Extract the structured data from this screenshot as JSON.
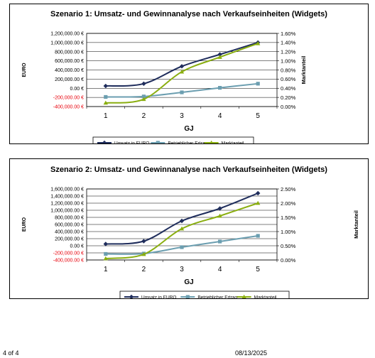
{
  "footer": {
    "page": "4 of 4",
    "date": "08/13/2025"
  },
  "chart_data": [
    {
      "type": "line",
      "title": "Szenario 1: Umsatz- und Gewinnanalyse nach Verkaufseinheiten (Widgets)",
      "xlabel": "GJ",
      "ylabel": "EURO",
      "y2label": "Marktanteil",
      "categories": [
        "1",
        "2",
        "3",
        "4",
        "5"
      ],
      "ylim": [
        -400000,
        1200000
      ],
      "yticks": [
        "1,200,000.00 €",
        "1,000,000.00 €",
        "800,000.00 €",
        "600,000.00 €",
        "400,000.00 €",
        "200,000.00 €",
        "0.00 €",
        "-200,000.00 €",
        "-400,000.00 €"
      ],
      "y2lim": [
        0,
        0.016
      ],
      "y2ticks": [
        "1.60%",
        "1.40%",
        "1.20%",
        "1.00%",
        "0.80%",
        "0.60%",
        "0.40%",
        "0.20%",
        "0.00%"
      ],
      "negative_tick_color": "#e8000b",
      "grid": true,
      "legend_position": "bottom",
      "series": [
        {
          "name": "Umsatz in EURO",
          "axis": "left",
          "values": [
            50000,
            100000,
            480000,
            740000,
            1000000
          ],
          "color": "#1f2d5c",
          "marker": "diamond"
        },
        {
          "name": "Betrieblicher Ertrag",
          "axis": "left",
          "values": [
            -190000,
            -180000,
            -90000,
            10000,
            100000
          ],
          "color": "#6b9eb0",
          "marker": "square"
        },
        {
          "name": "Marktanteil",
          "axis": "right",
          "values": [
            0.0008,
            0.0016,
            0.0076,
            0.0108,
            0.0138
          ],
          "color": "#8aae10",
          "marker": "triangle"
        }
      ]
    },
    {
      "type": "line",
      "title": "Szenario 2: Umsatz- und Gewinnanalyse nach Verkaufseinheiten (Widgets)",
      "xlabel": "GJ",
      "ylabel": "EURO",
      "y2label": "Marktanteil",
      "categories": [
        "1",
        "2",
        "3",
        "4",
        "5"
      ],
      "ylim": [
        -400000,
        1600000
      ],
      "yticks": [
        "1,600,000.00 €",
        "1,400,000.00 €",
        "1,200,000.00 €",
        "1,000,000.00 €",
        "800,000.00 €",
        "600,000.00 €",
        "400,000.00 €",
        "200,000.00 €",
        "0.00 €",
        "-200,000.00 €",
        "-400,000.00 €"
      ],
      "y2lim": [
        0,
        0.025
      ],
      "y2ticks": [
        "2.50%",
        "2.00%",
        "1.50%",
        "1.00%",
        "0.50%",
        "0.00%"
      ],
      "negative_tick_color": "#e8000b",
      "grid": true,
      "legend_position": "bottom",
      "series": [
        {
          "name": "Umsatz in EURO",
          "axis": "left",
          "values": [
            50000,
            130000,
            700000,
            1050000,
            1480000
          ],
          "color": "#1f2d5c",
          "marker": "diamond"
        },
        {
          "name": "Betrieblicher Ertrag",
          "axis": "left",
          "values": [
            -230000,
            -220000,
            -40000,
            120000,
            280000
          ],
          "color": "#6b9eb0",
          "marker": "square"
        },
        {
          "name": "Marktanteil",
          "axis": "right",
          "values": [
            0.0005,
            0.002,
            0.011,
            0.0155,
            0.02
          ],
          "color": "#8aae10",
          "marker": "triangle"
        }
      ]
    }
  ]
}
